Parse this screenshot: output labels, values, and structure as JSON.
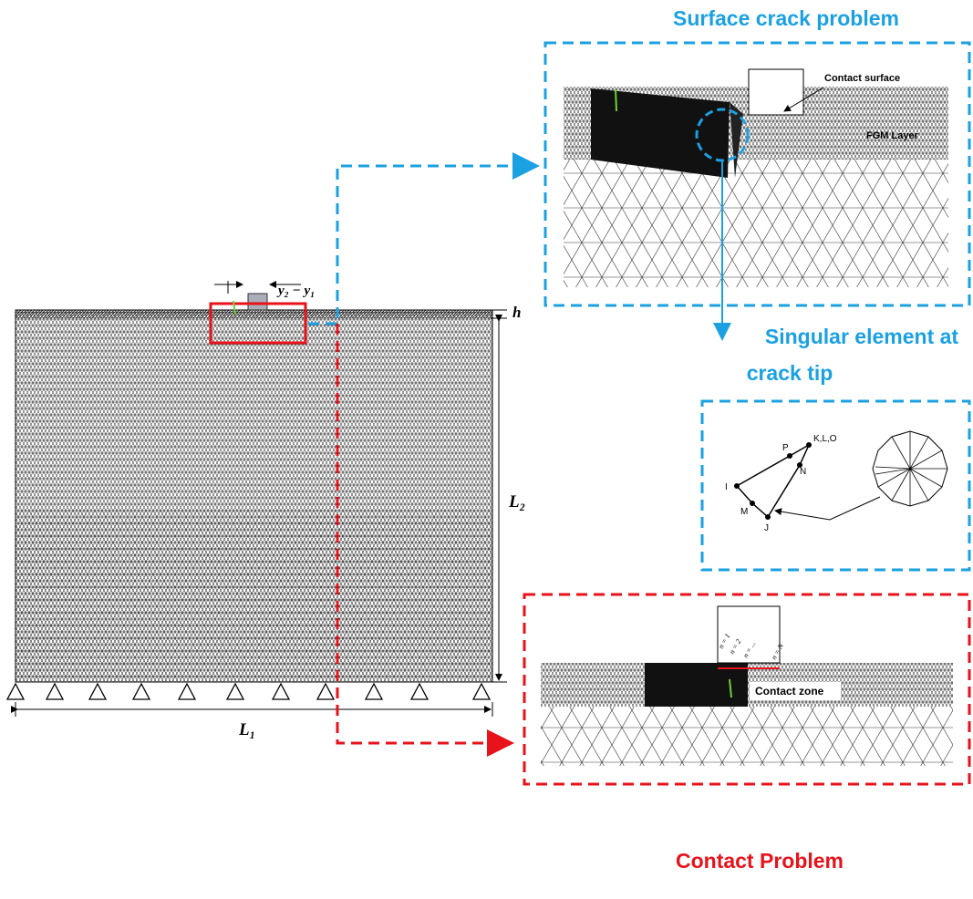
{
  "main_model": {
    "dimension_top": "y₂ − y₁",
    "h": "h",
    "L2": "L₂",
    "L1": "L₁"
  },
  "surface_crack": {
    "title": "Surface crack problem",
    "contact_surface": "Contact surface",
    "fgm_layer": "FGM Layer"
  },
  "singular_element": {
    "title_lines": [
      "Singular element at",
      "crack tip"
    ],
    "nodes": [
      "K,L,O",
      "P",
      "N",
      "I",
      "M",
      "J"
    ]
  },
  "contact_problem": {
    "title": "Contact Problem",
    "contact_zone": "Contact zone",
    "n_labels": [
      "n = 1",
      "n = 2",
      "n = ...",
      "n = N"
    ]
  }
}
